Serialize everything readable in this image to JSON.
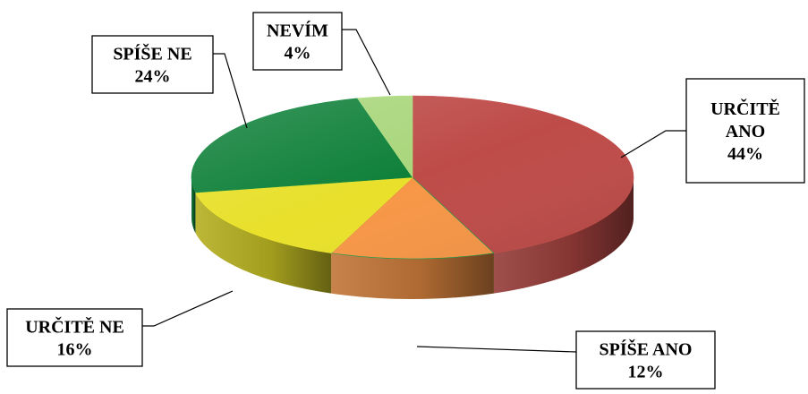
{
  "chart_data": {
    "type": "pie",
    "style": "3d",
    "title": "",
    "slices": [
      {
        "label": "URČITĚ ANO",
        "value": 44,
        "display": "44%",
        "color": "#BE4B48"
      },
      {
        "label": "SPÍŠE ANO",
        "value": 12,
        "display": "12%",
        "color": "#F79646"
      },
      {
        "label": "URČITĚ NE",
        "value": 16,
        "display": "16%",
        "color": "#E8E02A"
      },
      {
        "label": "SPÍŠE NE",
        "value": 24,
        "display": "24%",
        "color": "#0E8039"
      },
      {
        "label": "NEVÍM",
        "value": 4,
        "display": "4%",
        "color": "#A9D67B"
      }
    ],
    "legend": "none",
    "data_labels": "callout-boxes"
  }
}
